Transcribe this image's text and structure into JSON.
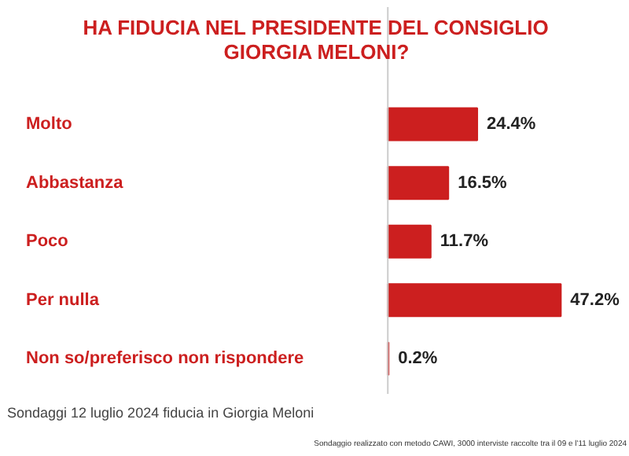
{
  "chart_data": {
    "type": "bar",
    "orientation": "horizontal",
    "title": "HA FIDUCIA NEL PRESIDENTE DEL CONSIGLIO\nGIORGIA MELONI?",
    "categories": [
      "Molto",
      "Abbastanza",
      "Poco",
      "Per nulla",
      "Non so/preferisco non rispondere"
    ],
    "values": [
      24.4,
      16.5,
      11.7,
      47.2,
      0.2
    ],
    "value_labels": [
      "24.4%",
      "16.5%",
      "11.7%",
      "47.2%",
      "0.2%"
    ],
    "color": "#cc1f1f",
    "grid": false,
    "annotations": [
      "Sondaggio realizzato con metodo CAWI, 3000 interviste raccolte tra il 09 e l'11 luglio 2024",
      "Sondaggi 12 luglio 2024 fiducia in Giorgia Meloni"
    ]
  }
}
